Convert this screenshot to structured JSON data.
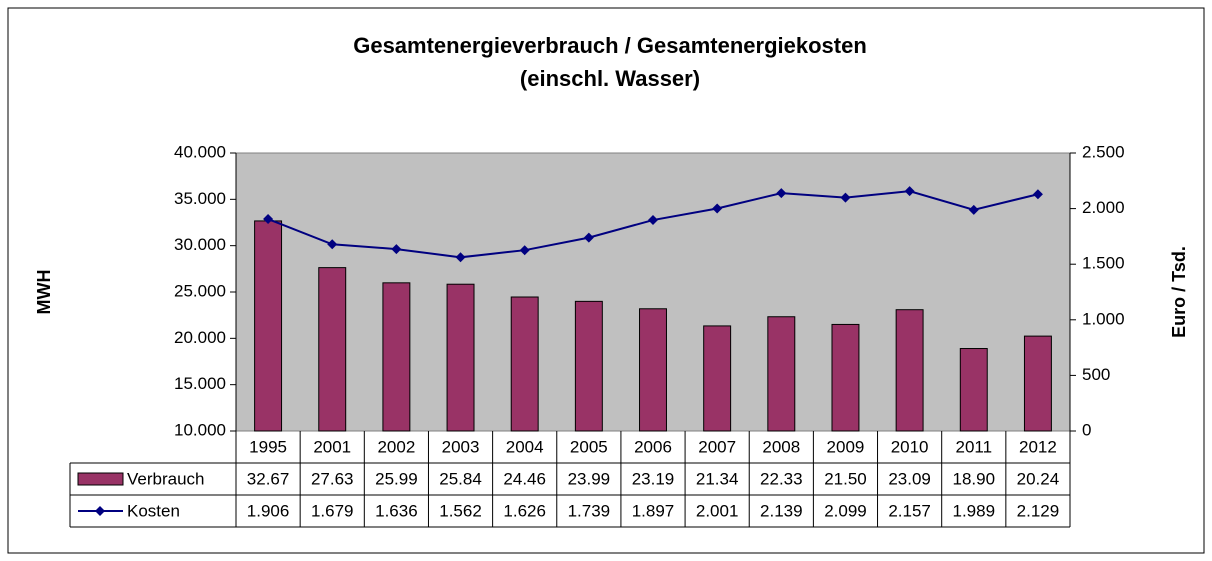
{
  "chart_data": {
    "type": "bar",
    "title": "Gesamtenergieverbrauch / Gesamtenergiekosten",
    "subtitle": "(einschl. Wasser)",
    "y_label": "MWH",
    "y2_label": "Euro / Tsd.",
    "categories": [
      "1995",
      "2001",
      "2002",
      "2003",
      "2004",
      "2005",
      "2006",
      "2007",
      "2008",
      "2009",
      "2010",
      "2011",
      "2012"
    ],
    "series": [
      {
        "name": "Verbrauch",
        "type": "bar",
        "color": "#993366",
        "values": [
          32670,
          27630,
          25990,
          25840,
          24460,
          23990,
          23190,
          21340,
          22330,
          21500,
          23090,
          18900,
          20240
        ],
        "value_labels": [
          "32.67",
          "27.63",
          "25.99",
          "25.84",
          "24.46",
          "23.99",
          "23.19",
          "21.34",
          "22.33",
          "21.50",
          "23.09",
          "18.90",
          "20.24"
        ]
      },
      {
        "name": "Kosten",
        "type": "line",
        "axis": "y2",
        "color": "#000080",
        "values": [
          1906,
          1679,
          1636,
          1562,
          1626,
          1739,
          1897,
          2001,
          2139,
          2099,
          2157,
          1989,
          2129
        ],
        "value_labels": [
          "1.906",
          "1.679",
          "1.636",
          "1.562",
          "1.626",
          "1.739",
          "1.897",
          "2.001",
          "2.139",
          "2.099",
          "2.157",
          "1.989",
          "2.129"
        ]
      }
    ],
    "ylim": [
      10000,
      40000
    ],
    "yticks": [
      {
        "value": 10000,
        "label": "10.000"
      },
      {
        "value": 15000,
        "label": "15.000"
      },
      {
        "value": 20000,
        "label": "20.000"
      },
      {
        "value": 25000,
        "label": "25.000"
      },
      {
        "value": 30000,
        "label": "30.000"
      },
      {
        "value": 35000,
        "label": "35.000"
      },
      {
        "value": 40000,
        "label": "40.000"
      }
    ],
    "y2lim": [
      0,
      2500
    ],
    "y2ticks": [
      0,
      500,
      {
        "value": 1000,
        "label": "1.000"
      },
      {
        "value": 1500,
        "label": "1.500"
      },
      {
        "value": 2000,
        "label": "2.000"
      },
      {
        "value": 2500,
        "label": "2.500"
      }
    ],
    "plot_background": "#c0c0c0",
    "grid": false
  }
}
